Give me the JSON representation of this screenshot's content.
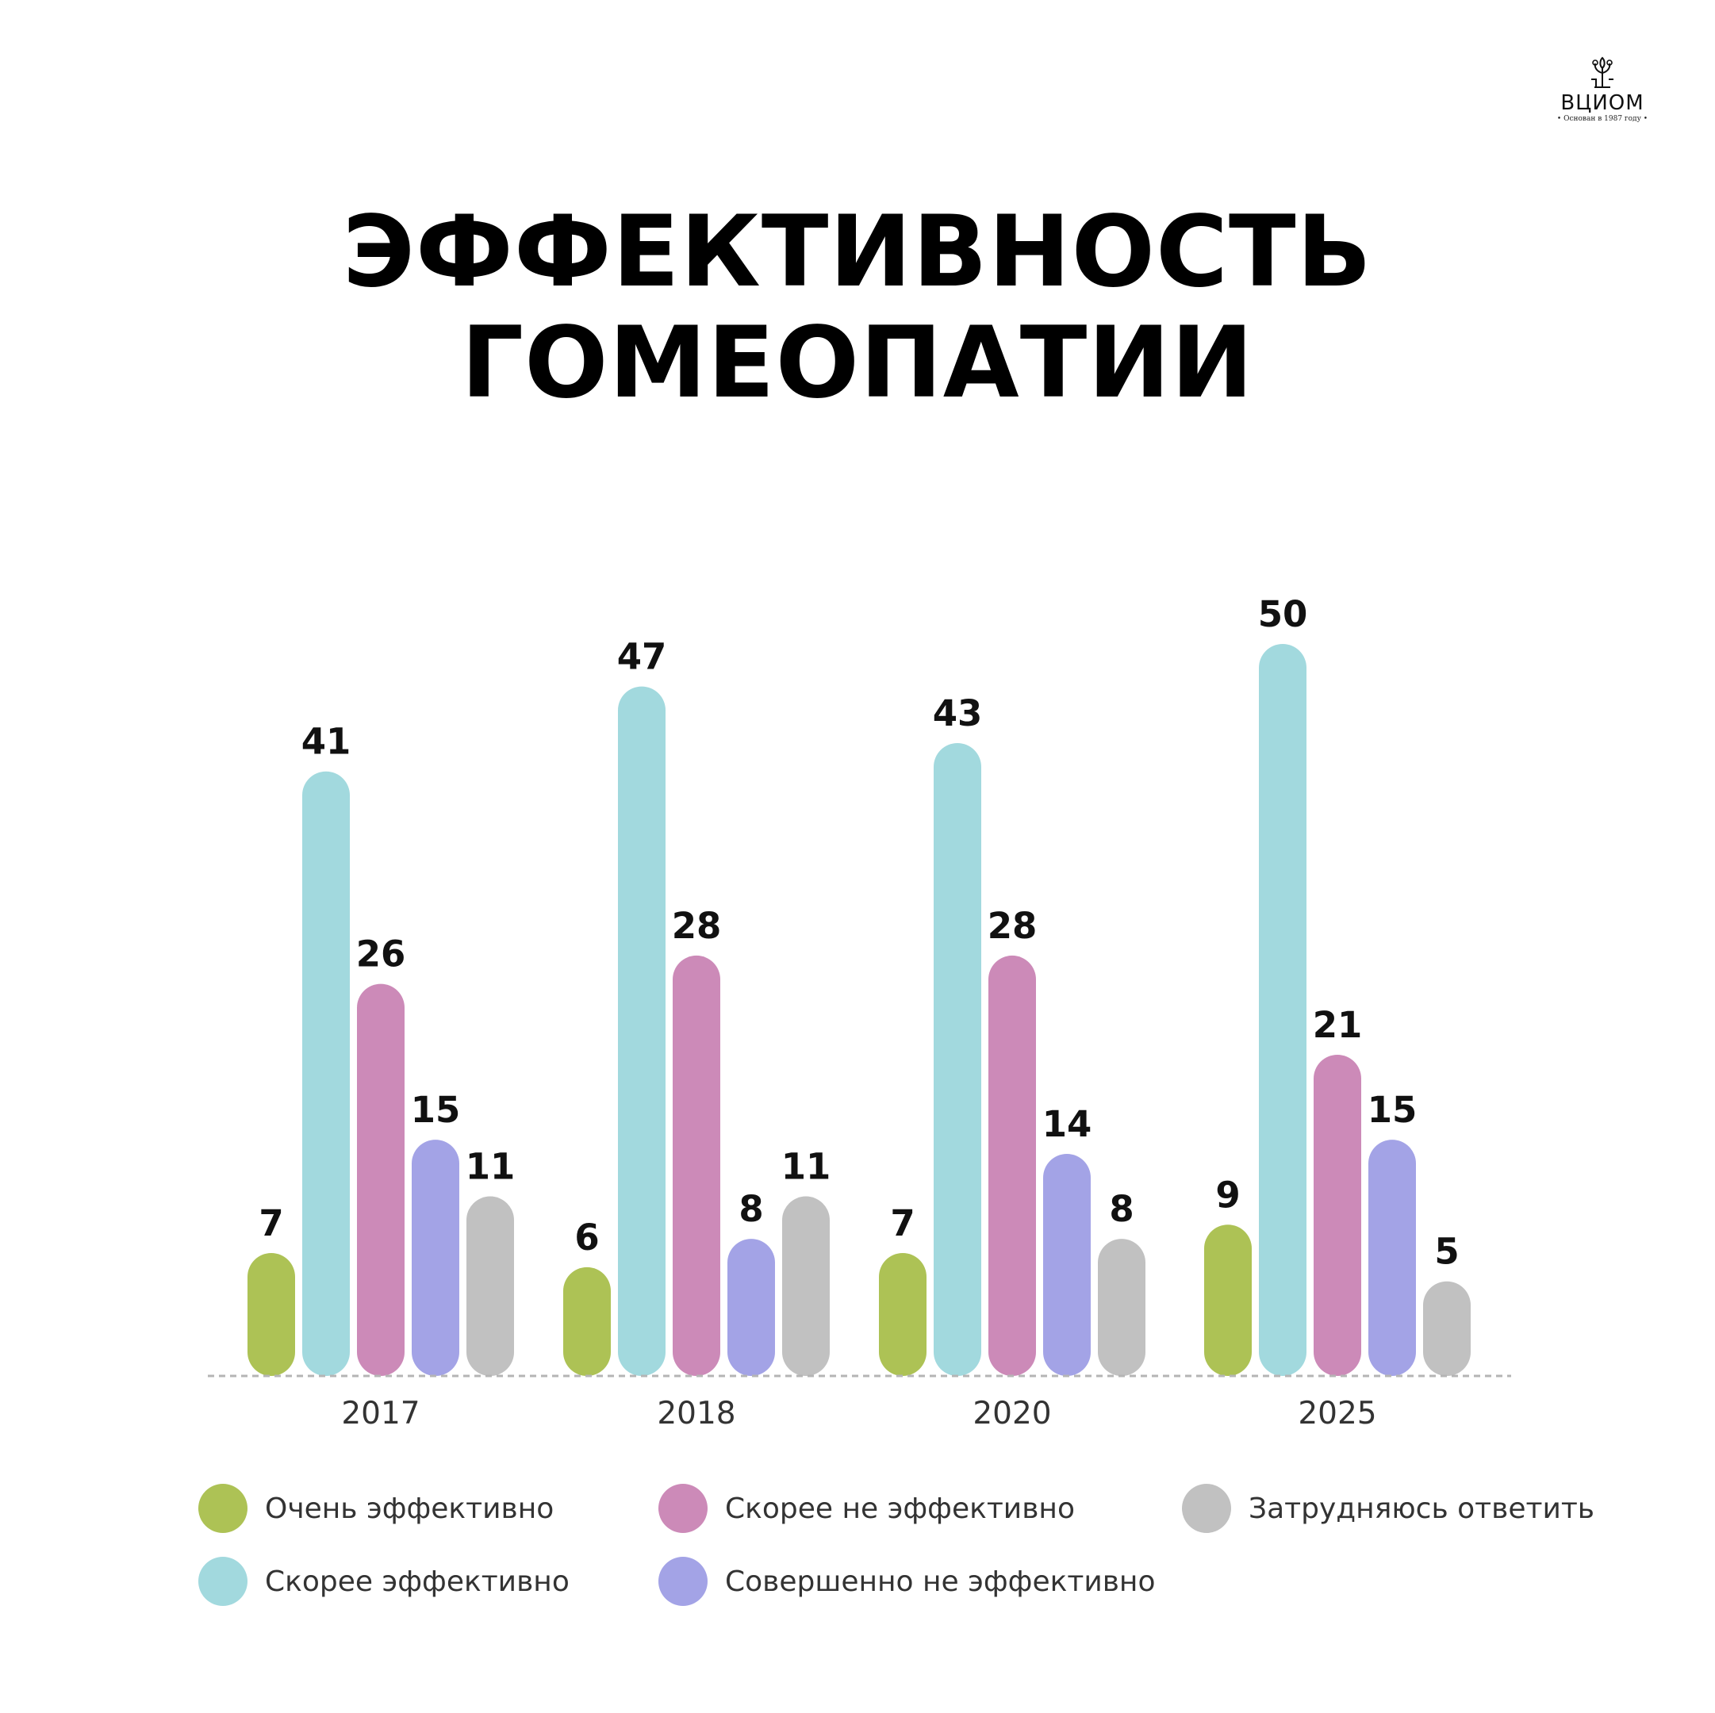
{
  "logo": {
    "name": "ВЦИОМ",
    "tagline": "• Основан в 1987 году •"
  },
  "chart_data": {
    "type": "bar",
    "title": "ЭФФЕКТИВНОСТЬ ГОМЕОПАТИИ",
    "xlabel": "",
    "ylabel": "",
    "categories": [
      "2017",
      "2018",
      "2020",
      "2025"
    ],
    "series": [
      {
        "name": "Очень эффективно",
        "color": "#adc255",
        "values": [
          7,
          6,
          7,
          9
        ]
      },
      {
        "name": "Скорее эффективно",
        "color": "#a2d9de",
        "values": [
          41,
          47,
          43,
          50
        ]
      },
      {
        "name": "Скорее не эффективно",
        "color": "#cc8ab8",
        "values": [
          26,
          28,
          28,
          21
        ]
      },
      {
        "name": "Совершенно не эффективно",
        "color": "#a3a3e6",
        "values": [
          15,
          8,
          14,
          15
        ]
      },
      {
        "name": "Затрудняюсь ответить",
        "color": "#c1c1c1",
        "values": [
          11,
          11,
          8,
          5
        ]
      }
    ],
    "ylim": [
      0,
      50
    ],
    "grid": false,
    "legend_position": "bottom"
  }
}
